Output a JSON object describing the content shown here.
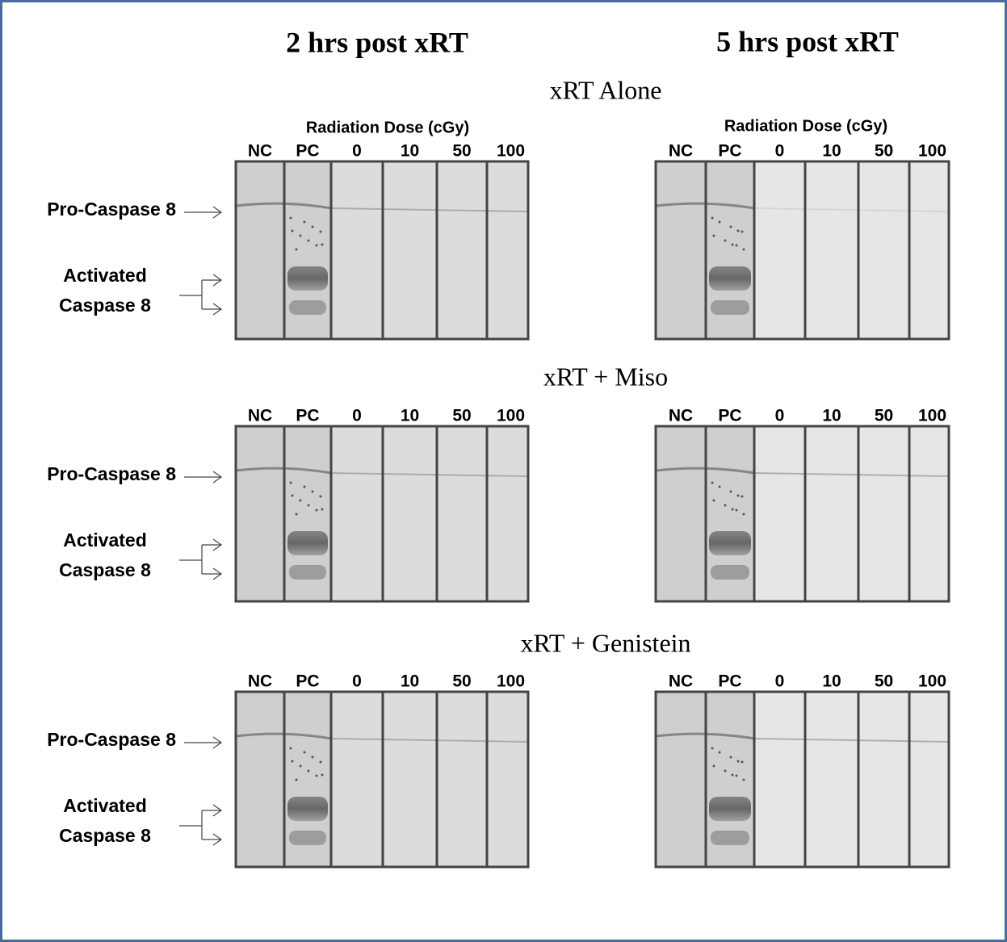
{
  "columns": [
    "2 hrs post xRT",
    "5 hrs post xRT"
  ],
  "dose_axis_label": "Radiation Dose (cGy)",
  "lanes": [
    "NC",
    "PC",
    "0",
    "10",
    "50",
    "100"
  ],
  "panels": [
    {
      "title": "xRT Alone"
    },
    {
      "title": "xRT + Miso"
    },
    {
      "title": "xRT + Genistein"
    }
  ],
  "band_labels": {
    "pro": "Pro-Caspase 8",
    "activated": [
      "Activated",
      "Caspase 8"
    ]
  }
}
